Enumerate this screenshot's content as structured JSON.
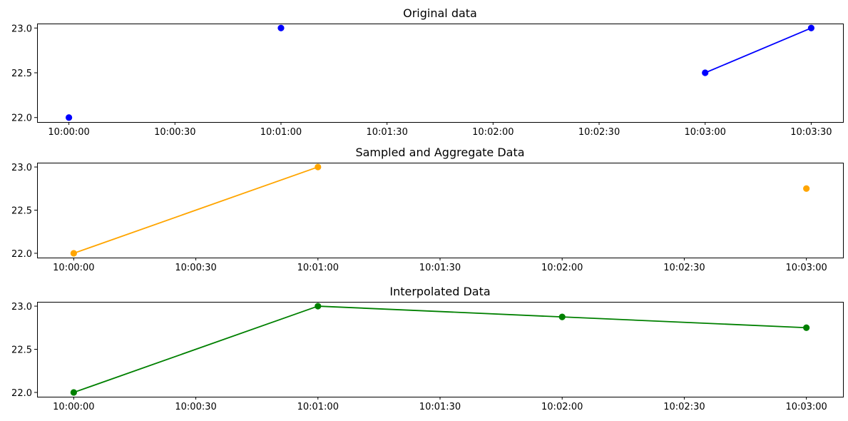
{
  "chart_data": [
    {
      "type": "line",
      "title": "Original data",
      "xlabel": "",
      "ylabel": "",
      "x_ticks": [
        "10:00:00",
        "10:00:30",
        "10:01:00",
        "10:01:30",
        "10:02:00",
        "10:02:30",
        "10:03:00",
        "10:03:30"
      ],
      "y_ticks": [
        "22.0",
        "22.5",
        "23.0"
      ],
      "xlim": [
        "09:59:51",
        "10:03:39"
      ],
      "ylim": [
        21.95,
        23.05
      ],
      "grid": false,
      "series": [
        {
          "color": "#0000ff",
          "marker": "circle",
          "points": [
            {
              "x": "10:00:00",
              "y": 22.0
            },
            {
              "x": "10:01:00",
              "y": 23.0
            },
            {
              "x": "10:03:00",
              "y": 22.5
            },
            {
              "x": "10:03:30",
              "y": 23.0
            }
          ],
          "segments": [
            [
              2,
              3
            ]
          ]
        }
      ]
    },
    {
      "type": "line",
      "title": "Sampled and Aggregate Data",
      "xlabel": "",
      "ylabel": "",
      "x_ticks": [
        "10:00:00",
        "10:00:30",
        "10:01:00",
        "10:01:30",
        "10:02:00",
        "10:02:30",
        "10:03:00"
      ],
      "y_ticks": [
        "22.0",
        "22.5",
        "23.0"
      ],
      "xlim": [
        "09:59:51",
        "10:03:09"
      ],
      "ylim": [
        21.95,
        23.05
      ],
      "grid": false,
      "series": [
        {
          "color": "#ffa500",
          "marker": "circle",
          "points": [
            {
              "x": "10:00:00",
              "y": 22.0
            },
            {
              "x": "10:01:00",
              "y": 23.0
            },
            {
              "x": "10:03:00",
              "y": 22.75
            }
          ],
          "segments": [
            [
              0,
              1
            ]
          ]
        }
      ]
    },
    {
      "type": "line",
      "title": "Interpolated Data",
      "xlabel": "",
      "ylabel": "",
      "x_ticks": [
        "10:00:00",
        "10:00:30",
        "10:01:00",
        "10:01:30",
        "10:02:00",
        "10:02:30",
        "10:03:00"
      ],
      "y_ticks": [
        "22.0",
        "22.5",
        "23.0"
      ],
      "xlim": [
        "09:59:51",
        "10:03:09"
      ],
      "ylim": [
        21.95,
        23.05
      ],
      "grid": false,
      "series": [
        {
          "color": "#008000",
          "marker": "circle",
          "points": [
            {
              "x": "10:00:00",
              "y": 22.0
            },
            {
              "x": "10:01:00",
              "y": 23.0
            },
            {
              "x": "10:02:00",
              "y": 22.875
            },
            {
              "x": "10:03:00",
              "y": 22.75
            }
          ],
          "segments": [
            [
              0,
              1
            ],
            [
              1,
              2
            ],
            [
              2,
              3
            ]
          ]
        }
      ]
    }
  ]
}
